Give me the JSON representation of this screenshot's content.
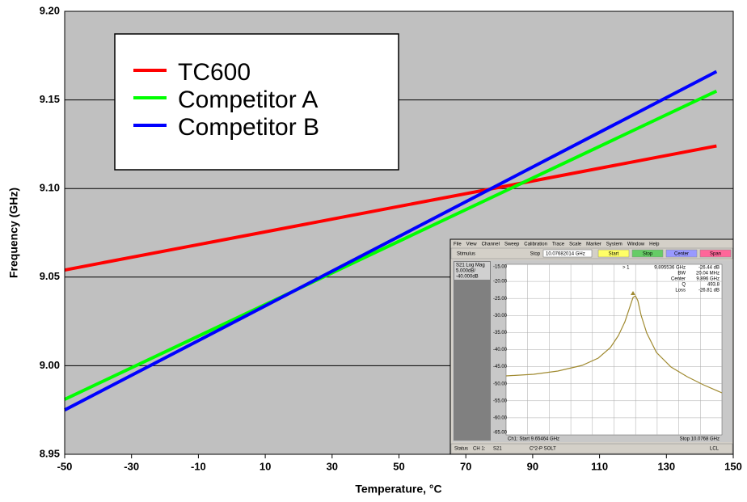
{
  "chart_data": {
    "type": "line",
    "x_label": "Temperature, °C",
    "y_label": "Frequency (GHz)",
    "x": [
      -50,
      145
    ],
    "series": [
      {
        "name": "TC600",
        "color": "#ff0000",
        "values": [
          9.054,
          9.124
        ]
      },
      {
        "name": "Competitor A",
        "color": "#00ff00",
        "values": [
          8.981,
          9.155
        ]
      },
      {
        "name": "Competitor B",
        "color": "#0000ff",
        "values": [
          8.975,
          9.166
        ]
      }
    ],
    "xlim": [
      -50,
      150
    ],
    "ylim": [
      8.95,
      9.2
    ],
    "xticks": [
      -50,
      -30,
      -10,
      10,
      30,
      50,
      70,
      90,
      110,
      130,
      150
    ],
    "yticks": [
      8.95,
      {
        "value": 9,
        "label": "9.00"
      },
      9.05,
      {
        "value": 9.1,
        "label": "9.10"
      },
      9.15,
      {
        "value": 9.2,
        "label": "9.20"
      }
    ],
    "grid": true,
    "legend_position": "upper left"
  },
  "inset": {
    "menu": [
      "File",
      "View",
      "Channel",
      "Sweep",
      "Calibration",
      "Trace",
      "Scale",
      "Marker",
      "System",
      "Window",
      "Help"
    ],
    "stimulus": "Stimulus",
    "stop_field": "Stop",
    "stop_value": "10.07682014 GHz",
    "buttons": [
      "Start",
      "Stop",
      "Center",
      "Span"
    ],
    "trace_label": "S21 Log Mag",
    "scale": "5.000dB/",
    "reference": "-40.000dB",
    "y_labels": [
      "-15.00",
      "-20.00",
      "-25.00",
      "-30.00",
      "-35.00",
      "-40.00",
      "-45.00",
      "-50.00",
      "-55.00",
      "-60.00",
      "-65.00"
    ],
    "marker_id": "> 1",
    "marker_freq": "9.895536 GHz",
    "marker_value": "-26.44 dB",
    "readouts": [
      [
        "BW",
        "20.04 MHz"
      ],
      [
        "Center",
        "9.896 GHz"
      ],
      [
        "Q",
        "493.8"
      ],
      [
        "Loss",
        "-26.81 dB"
      ]
    ],
    "start": "Ch1: Start 9.65464 GHz",
    "stop": "Stop 10.0768 GHz",
    "status": [
      "Status",
      "CH 1:",
      "S21",
      "C*2-P SOLT",
      "LCL"
    ]
  }
}
